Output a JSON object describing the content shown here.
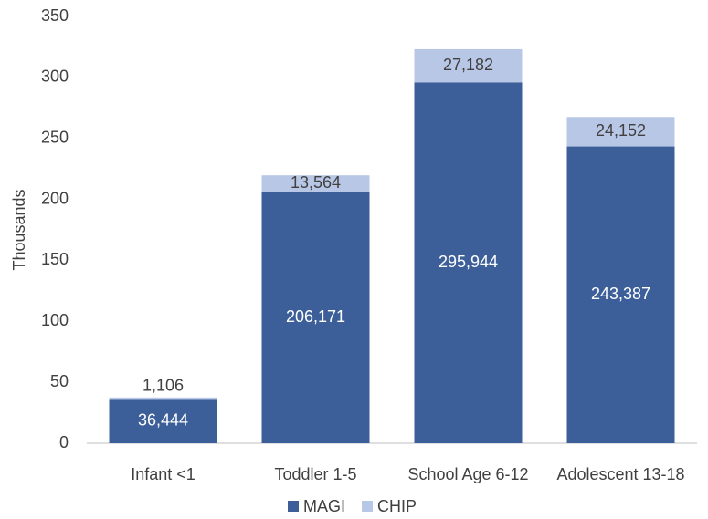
{
  "chart_data": {
    "type": "bar",
    "stacked": true,
    "ylabel": "Thousands",
    "categories": [
      "Infant <1",
      "Toddler 1-5",
      "School Age 6-12",
      "Adolescent 13-18"
    ],
    "series": [
      {
        "name": "MAGI",
        "color": "#3d5f99",
        "values": [
          36.444,
          206.171,
          295.944,
          243.387
        ],
        "value_labels": [
          "36,444",
          "206,171",
          "295,944",
          "243,387"
        ]
      },
      {
        "name": "CHIP",
        "color": "#b9c7e6",
        "values": [
          1.106,
          13.564,
          27.182,
          24.152
        ],
        "value_labels": [
          "1,106",
          "13,564",
          "27,182",
          "24,152"
        ]
      }
    ],
    "ylim": [
      0,
      350
    ],
    "yticks": [
      0,
      50,
      100,
      150,
      200,
      250,
      300,
      350
    ],
    "grid": false,
    "legend": "bottom"
  }
}
